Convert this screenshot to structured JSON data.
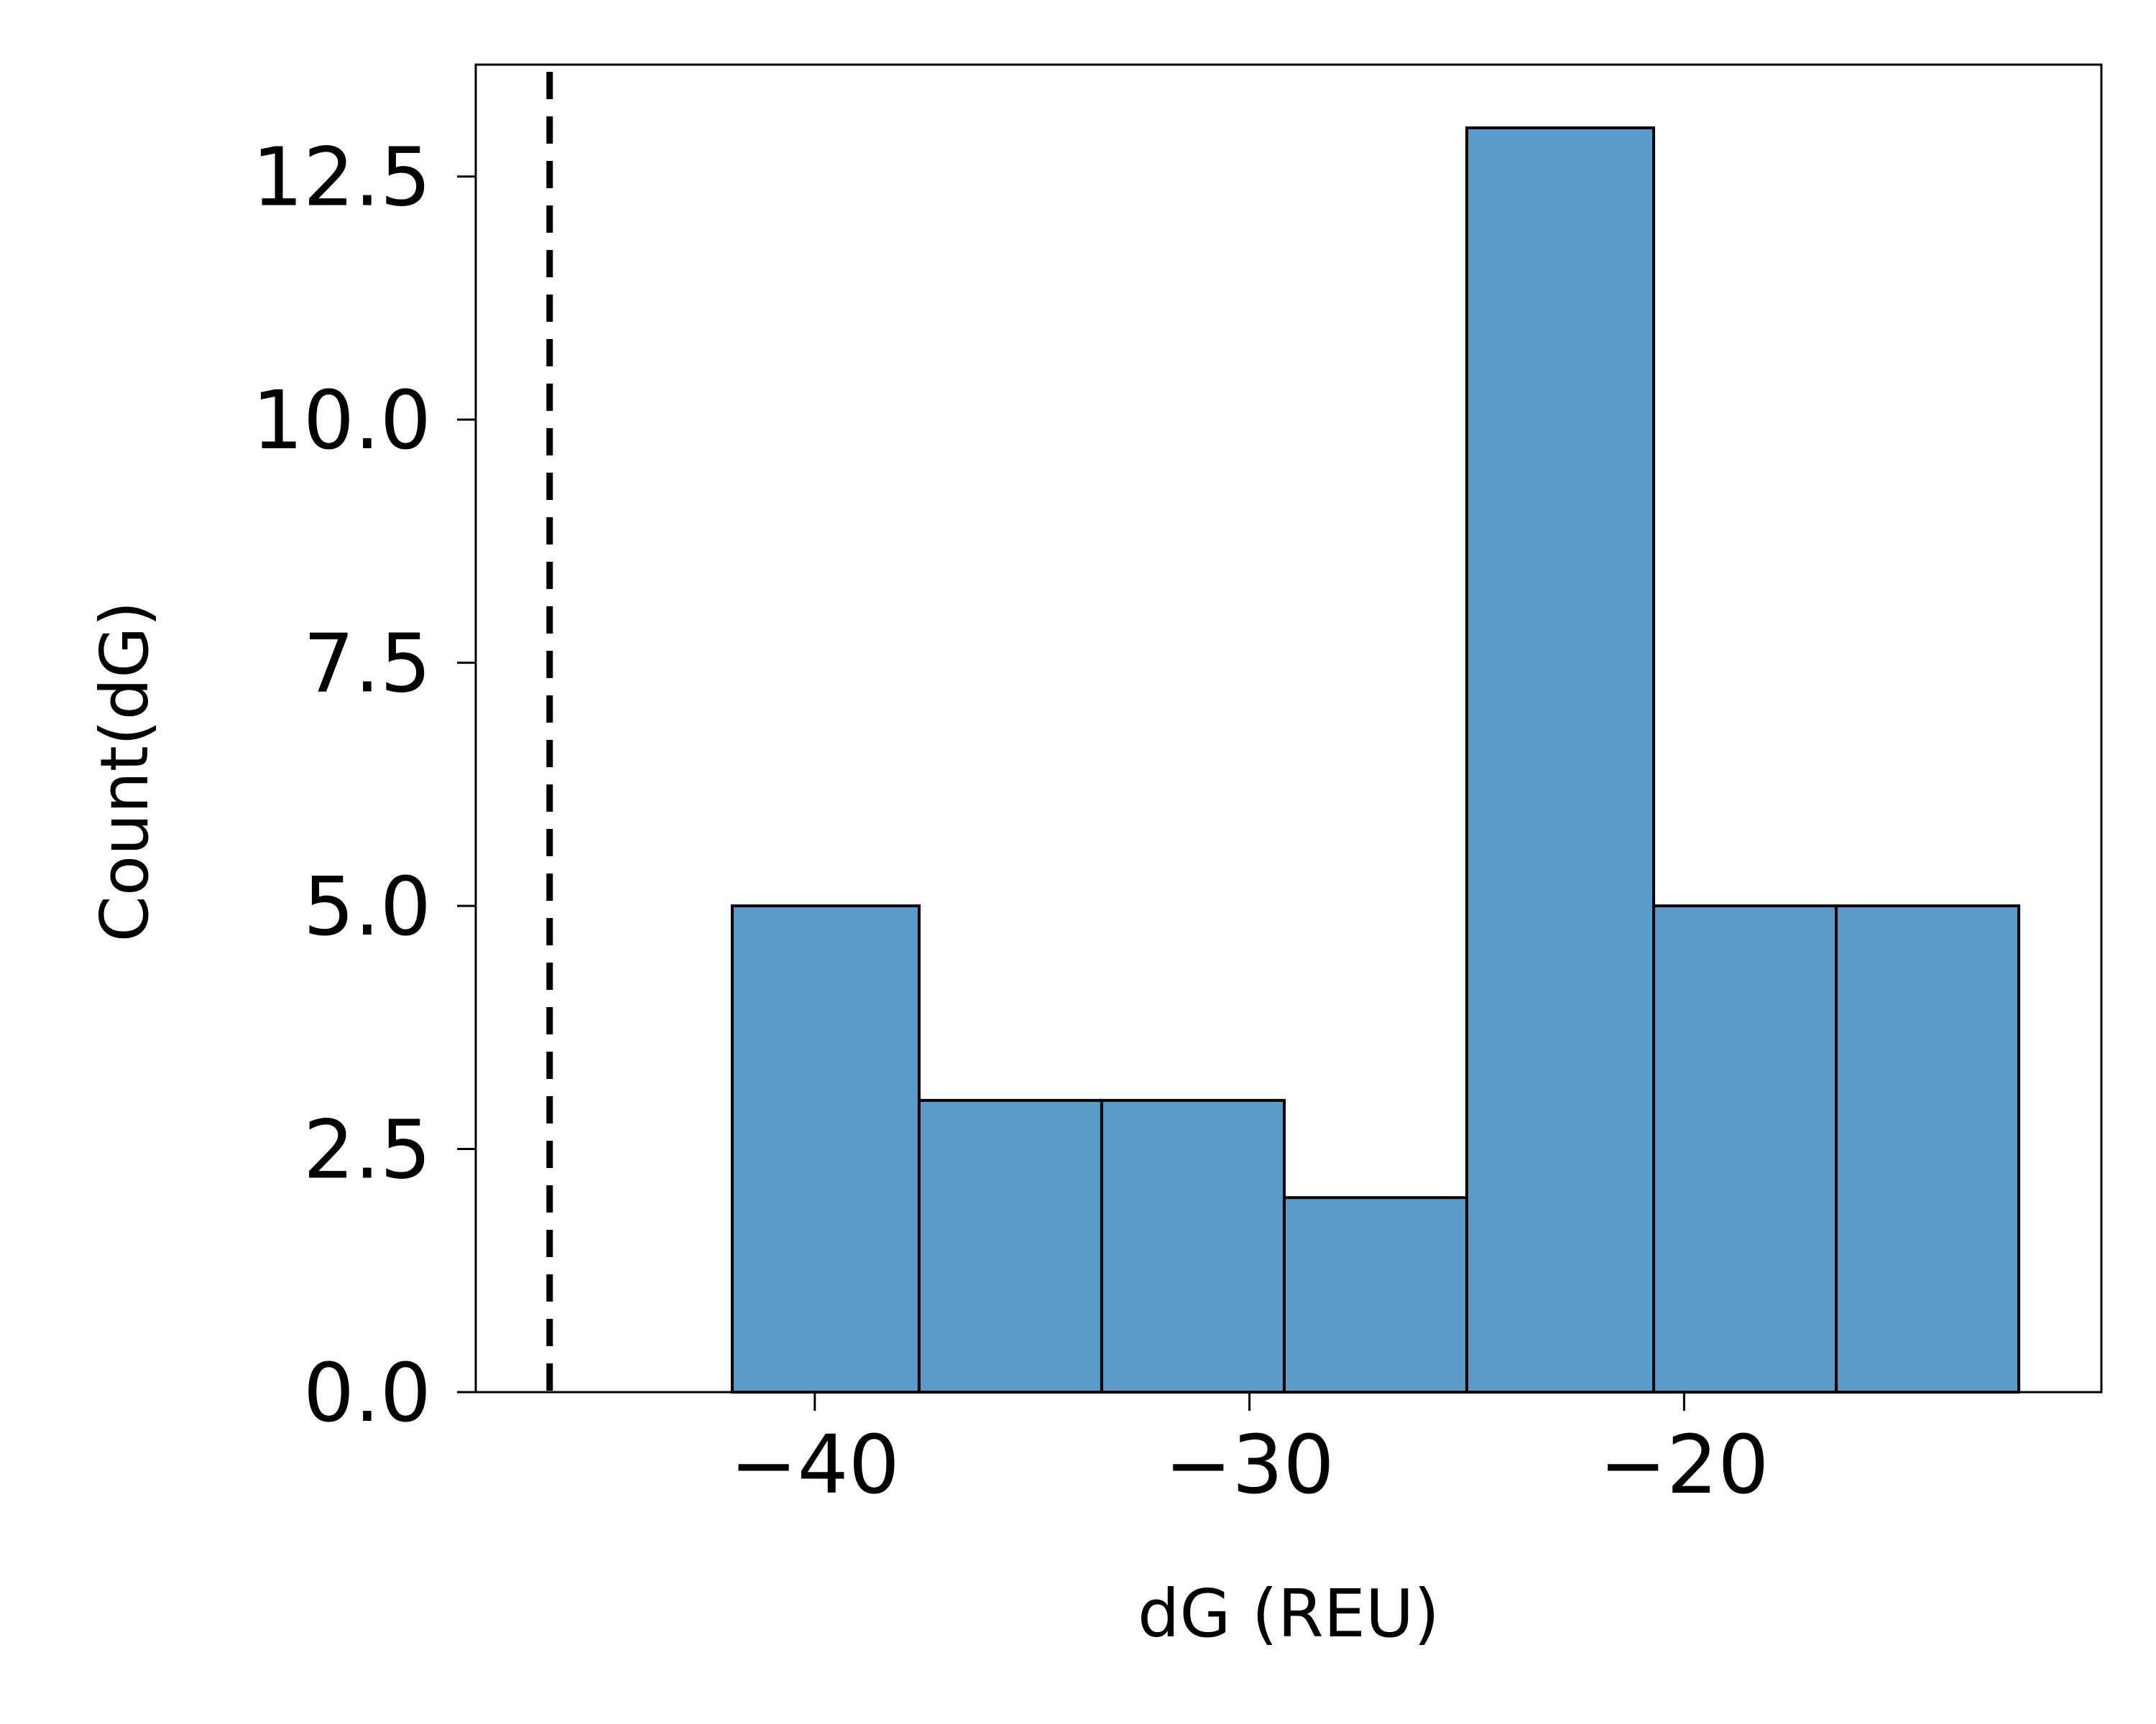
{
  "chart_data": {
    "type": "bar",
    "histogram": true,
    "xlabel": "dG (REU)",
    "ylabel": "Count(dG)",
    "xlim": [
      -47.8,
      -10.4
    ],
    "ylim": [
      0,
      13.65
    ],
    "xticks": [
      -40,
      -30,
      -20
    ],
    "xtick_labels": [
      "−40",
      "−30",
      "−20"
    ],
    "yticks": [
      0,
      2.5,
      5,
      7.5,
      10,
      12.5
    ],
    "ytick_labels": [
      "0.0",
      "2.5",
      "5.0",
      "7.5",
      "10.0",
      "12.5"
    ],
    "bins": [
      {
        "x0": -41.9,
        "x1": -37.6,
        "count": 5
      },
      {
        "x0": -37.6,
        "x1": -33.4,
        "count": 3
      },
      {
        "x0": -33.4,
        "x1": -29.2,
        "count": 3
      },
      {
        "x0": -29.2,
        "x1": -25.0,
        "count": 2
      },
      {
        "x0": -25.0,
        "x1": -20.7,
        "count": 13
      },
      {
        "x0": -20.7,
        "x1": -16.5,
        "count": 5
      },
      {
        "x0": -16.5,
        "x1": -12.3,
        "count": 5
      }
    ],
    "reference_line": {
      "x": -46.1,
      "style": "dashed",
      "color": "#000000"
    },
    "colors": {
      "bar_fill": "#5a9bc9",
      "bar_edge": "#000000"
    },
    "grid": false,
    "legend": "none"
  }
}
